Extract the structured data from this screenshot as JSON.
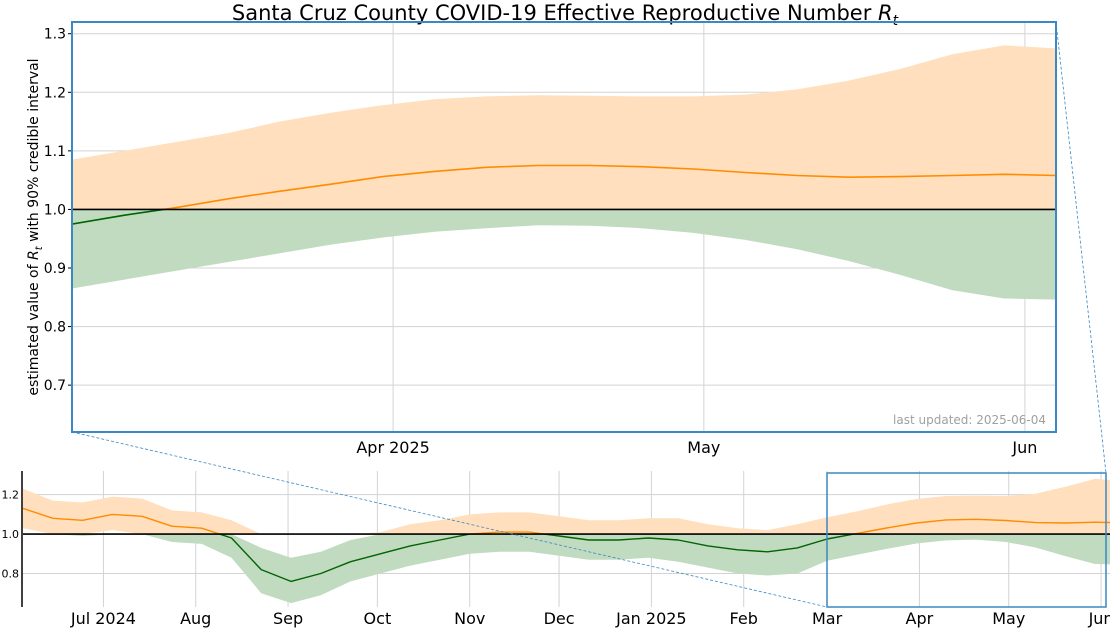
{
  "chart_data": [
    {
      "type": "line",
      "role": "main",
      "title": "Santa Cruz County COVID-19 Effective Reproductive Number",
      "title_symbol": "R",
      "title_symbol_sub": "t",
      "ylabel_pre": "estimated value of ",
      "ylabel_symbol": "R",
      "ylabel_symbol_sub": "t",
      "ylabel_post": " with 90% credible interval",
      "xlabel": "",
      "x_range": [
        "2025-03-01",
        "2025-06-04"
      ],
      "ylim": [
        0.62,
        1.32
      ],
      "yticks": [
        0.7,
        0.8,
        0.9,
        1.0,
        1.1,
        1.2,
        1.3
      ],
      "xticks": [
        {
          "date": "2025-04-01",
          "label": "Apr 2025"
        },
        {
          "date": "2025-05-01",
          "label": "May"
        },
        {
          "date": "2025-06-01",
          "label": "Jun"
        }
      ],
      "grid": true,
      "reference_line": 1.0,
      "annotation": "last updated: 2025-06-04",
      "series": [
        {
          "kind": "estimate",
          "x": [
            "2025-03-01",
            "2025-03-06",
            "2025-03-11",
            "2025-03-16",
            "2025-03-21",
            "2025-03-26",
            "2025-03-31",
            "2025-04-05",
            "2025-04-10",
            "2025-04-15",
            "2025-04-20",
            "2025-04-25",
            "2025-04-30",
            "2025-05-05",
            "2025-05-10",
            "2025-05-15",
            "2025-05-20",
            "2025-05-25",
            "2025-05-30",
            "2025-06-04"
          ],
          "y": [
            0.975,
            0.99,
            1.003,
            1.018,
            1.031,
            1.043,
            1.056,
            1.065,
            1.072,
            1.075,
            1.075,
            1.073,
            1.069,
            1.063,
            1.058,
            1.055,
            1.056,
            1.058,
            1.06,
            1.058
          ],
          "lower": [
            0.865,
            0.88,
            0.895,
            0.91,
            0.925,
            0.94,
            0.952,
            0.962,
            0.968,
            0.973,
            0.972,
            0.968,
            0.96,
            0.948,
            0.932,
            0.912,
            0.888,
            0.862,
            0.848,
            0.846
          ],
          "upper": [
            1.085,
            1.1,
            1.115,
            1.13,
            1.15,
            1.165,
            1.178,
            1.188,
            1.193,
            1.195,
            1.194,
            1.193,
            1.193,
            1.196,
            1.205,
            1.22,
            1.24,
            1.265,
            1.28,
            1.275
          ]
        }
      ],
      "colors": {
        "above_line": "#ff8c00",
        "above_band": "#ffdfbd",
        "below_line": "#006400",
        "below_band": "#c1dbc1",
        "frame": "#3a88c4",
        "grid": "#d3d3d3"
      }
    },
    {
      "type": "line",
      "role": "overview",
      "x_range": [
        "2024-06-04",
        "2025-06-04"
      ],
      "ylim": [
        0.63,
        1.32
      ],
      "yticks": [
        0.8,
        1.0,
        1.2
      ],
      "xticks": [
        {
          "date": "2024-07-01",
          "label": "Jul 2024"
        },
        {
          "date": "2024-08-01",
          "label": "Aug"
        },
        {
          "date": "2024-09-01",
          "label": "Sep"
        },
        {
          "date": "2024-10-01",
          "label": "Oct"
        },
        {
          "date": "2024-11-01",
          "label": "Nov"
        },
        {
          "date": "2024-12-01",
          "label": "Dec"
        },
        {
          "date": "2025-01-01",
          "label": "Jan 2025"
        },
        {
          "date": "2025-02-01",
          "label": "Feb"
        },
        {
          "date": "2025-03-01",
          "label": "Mar"
        },
        {
          "date": "2025-04-01",
          "label": "Apr"
        },
        {
          "date": "2025-05-01",
          "label": "May"
        },
        {
          "date": "2025-06-01",
          "label": "Jun"
        }
      ],
      "grid": true,
      "reference_line": 1.0,
      "zoom_window": [
        "2025-03-01",
        "2025-06-04"
      ],
      "series": [
        {
          "kind": "estimate",
          "x": [
            "2024-06-04",
            "2024-06-14",
            "2024-06-24",
            "2024-07-04",
            "2024-07-14",
            "2024-07-24",
            "2024-08-03",
            "2024-08-13",
            "2024-08-23",
            "2024-09-02",
            "2024-09-12",
            "2024-09-22",
            "2024-10-02",
            "2024-10-12",
            "2024-10-22",
            "2024-11-01",
            "2024-11-11",
            "2024-11-21",
            "2024-12-01",
            "2024-12-11",
            "2024-12-21",
            "2024-12-31",
            "2025-01-10",
            "2025-01-20",
            "2025-01-30",
            "2025-02-09",
            "2025-02-19",
            "2025-03-01",
            "2025-03-11",
            "2025-03-21",
            "2025-03-31",
            "2025-04-10",
            "2025-04-20",
            "2025-04-30",
            "2025-05-10",
            "2025-05-20",
            "2025-05-30",
            "2025-06-04"
          ],
          "y": [
            1.13,
            1.08,
            1.07,
            1.1,
            1.09,
            1.04,
            1.03,
            0.98,
            0.82,
            0.76,
            0.8,
            0.86,
            0.9,
            0.94,
            0.97,
            1.0,
            1.01,
            1.01,
            0.99,
            0.97,
            0.97,
            0.98,
            0.97,
            0.94,
            0.92,
            0.91,
            0.93,
            0.975,
            1.003,
            1.031,
            1.056,
            1.072,
            1.075,
            1.069,
            1.058,
            1.056,
            1.06,
            1.058
          ],
          "lower": [
            1.03,
            1.0,
            0.99,
            1.02,
            1.0,
            0.96,
            0.95,
            0.88,
            0.7,
            0.65,
            0.69,
            0.76,
            0.8,
            0.84,
            0.87,
            0.9,
            0.91,
            0.91,
            0.89,
            0.87,
            0.87,
            0.88,
            0.86,
            0.83,
            0.8,
            0.79,
            0.8,
            0.865,
            0.895,
            0.925,
            0.952,
            0.968,
            0.972,
            0.96,
            0.932,
            0.888,
            0.848,
            0.846
          ],
          "upper": [
            1.23,
            1.17,
            1.16,
            1.19,
            1.18,
            1.12,
            1.11,
            1.07,
            0.93,
            0.88,
            0.91,
            0.97,
            1.01,
            1.05,
            1.07,
            1.1,
            1.11,
            1.11,
            1.09,
            1.07,
            1.07,
            1.08,
            1.08,
            1.05,
            1.03,
            1.02,
            1.05,
            1.085,
            1.115,
            1.15,
            1.178,
            1.193,
            1.194,
            1.193,
            1.205,
            1.24,
            1.28,
            1.275
          ]
        }
      ]
    }
  ]
}
